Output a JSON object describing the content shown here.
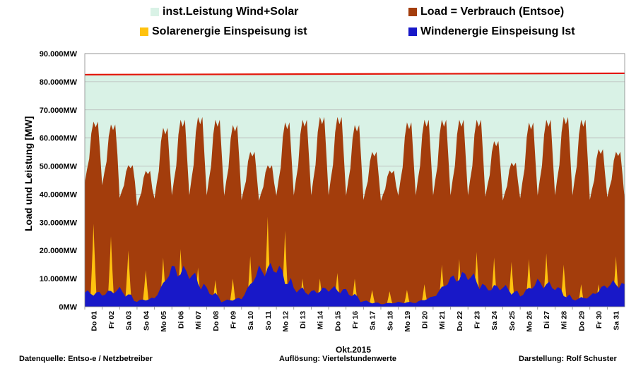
{
  "legend": [
    {
      "label": "inst.Leistung Wind+Solar",
      "color": "#d9f2e6"
    },
    {
      "label": "Load =  Verbrauch (Entsoe)",
      "color": "#a33d0c"
    },
    {
      "label": "Solarenergie Einspeisung ist",
      "color": "#ffc20e"
    },
    {
      "label": "Windenergie Einspeisung Ist",
      "color": "#1818c8"
    }
  ],
  "footer": {
    "source": "Datenquelle:  Entso-e  / Netzbetreiber",
    "resolution": "Auflösung: Viertelstundenwerte",
    "month": "Okt.2015",
    "author": "Darstellung: Rolf Schuster"
  },
  "chart_data": {
    "type": "area",
    "title": "",
    "ylabel": "Load und Leistung  [MW]",
    "xlabel": "Okt.2015",
    "ylim": [
      0,
      90000
    ],
    "yticks": [
      0,
      10000,
      20000,
      30000,
      40000,
      50000,
      60000,
      70000,
      80000,
      90000
    ],
    "ytick_labels": [
      "0MW",
      "10.000MW",
      "20.000MW",
      "30.000MW",
      "40.000MW",
      "50.000MW",
      "60.000MW",
      "70.000MW",
      "80.000MW",
      "90.000MW"
    ],
    "grid": true,
    "x": [
      "Do 01",
      "Fr 02",
      "Sa 03",
      "So 04",
      "Mo 05",
      "Di 06",
      "Mi 07",
      "Do 08",
      "Fr 09",
      "Sa 10",
      "So 11",
      "Mo 12",
      "Di 13",
      "Mi 14",
      "Do 15",
      "Fr 16",
      "Sa 17",
      "So 18",
      "Mo 19",
      "Di 20",
      "Mi 21",
      "Do 22",
      "Fr 23",
      "Sa 24",
      "So 25",
      "Mo 26",
      "Di 27",
      "Mi 28",
      "Do 29",
      "Fr 30",
      "Sa 31"
    ],
    "series": [
      {
        "name": "inst.Leistung Wind+Solar",
        "color": "#d9f2e6",
        "line_color": "#e3170a",
        "start": 82500,
        "end": 83000
      },
      {
        "name": "Load =  Verbrauch (Entsoe)",
        "color": "#a33d0c",
        "daily_peak": [
          67000,
          66000,
          51000,
          49000,
          65000,
          68000,
          69000,
          68000,
          66000,
          56000,
          51000,
          67000,
          68000,
          69000,
          69000,
          66000,
          56000,
          49000,
          67000,
          68000,
          68000,
          68000,
          68000,
          60000,
          52000,
          67000,
          68000,
          69000,
          68000,
          57000,
          56000
        ],
        "daily_min": [
          43000,
          42000,
          38000,
          35000,
          37000,
          38000,
          38000,
          38000,
          38000,
          37000,
          37000,
          38000,
          38000,
          38000,
          38000,
          38000,
          37000,
          37000,
          38000,
          38000,
          38000,
          38000,
          38000,
          38000,
          37000,
          37000,
          38000,
          38000,
          38000,
          37000,
          38000
        ]
      },
      {
        "name": "Solarenergie Einspeisung ist",
        "color": "#ffc20e",
        "daily_peak": [
          29500,
          25000,
          20000,
          13000,
          17500,
          20500,
          14000,
          9500,
          10000,
          18000,
          32000,
          27000,
          10000,
          10000,
          12000,
          10000,
          6000,
          5500,
          6000,
          8000,
          15000,
          17000,
          19500,
          17500,
          16000,
          17000,
          19000,
          15000,
          8000,
          8000,
          18000
        ]
      },
      {
        "name": "Windenergie Einspeisung Ist",
        "color": "#1818c8",
        "daily_avg": [
          5000,
          4500,
          6000,
          2000,
          3000,
          13000,
          12000,
          6000,
          2000,
          3000,
          12500,
          14000,
          6500,
          5000,
          6500,
          5500,
          2000,
          1000,
          1500,
          1500,
          3500,
          9500,
          11500,
          6500,
          7000,
          4000,
          8500,
          7000,
          2500,
          3500,
          8000
        ]
      }
    ]
  }
}
